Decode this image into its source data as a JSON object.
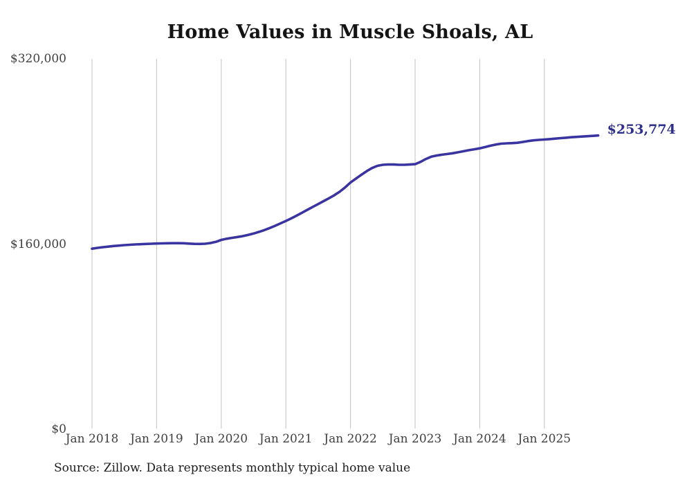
{
  "chart_data": {
    "type": "line",
    "title": "Home Values in Muscle Shoals, AL",
    "source_note": "Source: Zillow. Data represents monthly typical home value",
    "x_frequency": "monthly",
    "x_first": "Jan 2018",
    "x_tick_labels": [
      "Jan 2018",
      "Jan 2019",
      "Jan 2020",
      "Jan 2021",
      "Jan 2022",
      "Jan 2023",
      "Jan 2024",
      "Jan 2025"
    ],
    "x_tick_month_indices": [
      0,
      12,
      24,
      36,
      48,
      60,
      72,
      84
    ],
    "y_ticks": [
      {
        "label": "$0",
        "value": 0
      },
      {
        "label": "$160,000",
        "value": 160000
      },
      {
        "label": "$320,000",
        "value": 320000
      }
    ],
    "ylim": [
      0,
      320000
    ],
    "grid": "vertical-only",
    "legend": "none",
    "end_label": "$253,774",
    "end_value": 253774,
    "series": [
      {
        "name": "Monthly typical home value",
        "color": "#3a34a0",
        "values": [
          156000,
          156700,
          157300,
          157800,
          158300,
          158700,
          159100,
          159400,
          159700,
          159900,
          160100,
          160300,
          160500,
          160600,
          160700,
          160800,
          160800,
          160700,
          160400,
          160200,
          160100,
          160300,
          160900,
          161900,
          163600,
          164600,
          165400,
          166100,
          166900,
          167900,
          169100,
          170500,
          172100,
          173900,
          175800,
          177900,
          180000,
          182200,
          184600,
          187100,
          189600,
          192100,
          194600,
          197100,
          199600,
          202200,
          205200,
          208900,
          213200,
          216500,
          219800,
          223000,
          225700,
          227600,
          228500,
          228800,
          228700,
          228500,
          228500,
          228700,
          229000,
          231000,
          233500,
          235500,
          236500,
          237200,
          237800,
          238500,
          239300,
          240200,
          241100,
          241900,
          242700,
          243800,
          245000,
          246000,
          246700,
          247000,
          247200,
          247500,
          248200,
          249000,
          249600,
          250000,
          250300,
          250700,
          251100,
          251500,
          251900,
          252300,
          252600,
          252900,
          253200,
          253500,
          253774
        ]
      }
    ]
  },
  "colors": {
    "background": "#ffffff",
    "line": "#3a34a0",
    "end_label": "#2e2e8b",
    "gridline": "#cbcbcb",
    "tick_text": "#3f3f3f",
    "title_text": "#141414",
    "source_text": "#1c1c1c"
  }
}
